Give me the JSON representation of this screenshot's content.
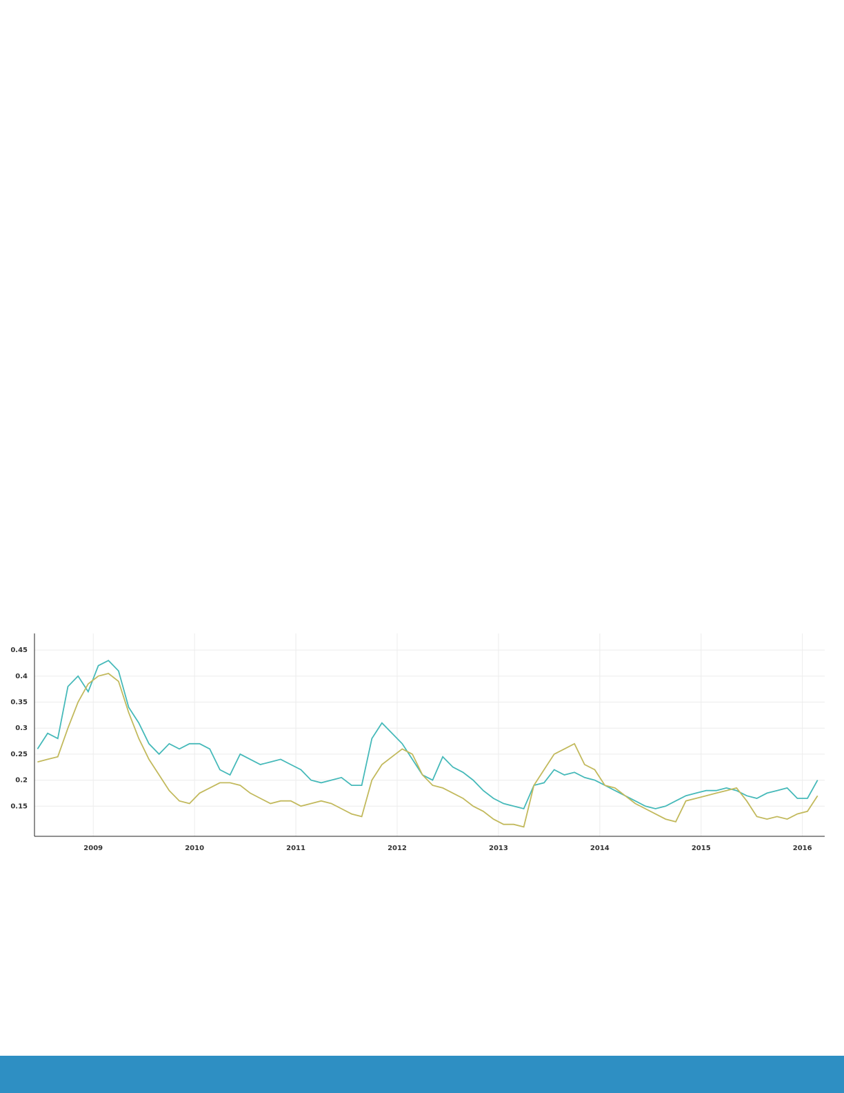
{
  "chart_data": {
    "type": "line",
    "x": [
      2008.45,
      2008.55,
      2008.65,
      2008.75,
      2008.85,
      2008.95,
      2009.05,
      2009.15,
      2009.25,
      2009.35,
      2009.45,
      2009.55,
      2009.65,
      2009.75,
      2009.85,
      2009.95,
      2010.05,
      2010.15,
      2010.25,
      2010.35,
      2010.45,
      2010.55,
      2010.65,
      2010.75,
      2010.85,
      2010.95,
      2011.05,
      2011.15,
      2011.25,
      2011.35,
      2011.45,
      2011.55,
      2011.65,
      2011.75,
      2011.85,
      2011.95,
      2012.05,
      2012.15,
      2012.25,
      2012.35,
      2012.45,
      2012.55,
      2012.65,
      2012.75,
      2012.85,
      2012.95,
      2013.05,
      2013.15,
      2013.25,
      2013.35,
      2013.45,
      2013.55,
      2013.65,
      2013.75,
      2013.85,
      2013.95,
      2014.05,
      2014.15,
      2014.25,
      2014.35,
      2014.45,
      2014.55,
      2014.65,
      2014.75,
      2014.85,
      2014.95,
      2015.05,
      2015.15,
      2015.25,
      2015.35,
      2015.45,
      2015.55,
      2015.65,
      2015.75,
      2015.85,
      2015.95,
      2016.05,
      2016.15
    ],
    "series": [
      {
        "color": "#45b9b9",
        "values": [
          0.26,
          0.29,
          0.28,
          0.38,
          0.4,
          0.37,
          0.42,
          0.43,
          0.41,
          0.34,
          0.31,
          0.27,
          0.25,
          0.27,
          0.26,
          0.27,
          0.27,
          0.26,
          0.22,
          0.21,
          0.25,
          0.24,
          0.23,
          0.235,
          0.24,
          0.23,
          0.22,
          0.2,
          0.195,
          0.2,
          0.205,
          0.19,
          0.19,
          0.28,
          0.31,
          0.29,
          0.27,
          0.24,
          0.21,
          0.2,
          0.245,
          0.225,
          0.215,
          0.2,
          0.18,
          0.165,
          0.155,
          0.15,
          0.145,
          0.19,
          0.195,
          0.22,
          0.21,
          0.215,
          0.205,
          0.2,
          0.19,
          0.18,
          0.17,
          0.16,
          0.15,
          0.145,
          0.15,
          0.16,
          0.17,
          0.175,
          0.18,
          0.18,
          0.185,
          0.18,
          0.17,
          0.165,
          0.175,
          0.18,
          0.185,
          0.165,
          0.165,
          0.2
        ]
      },
      {
        "color": "#c2b95c",
        "values": [
          0.235,
          0.24,
          0.245,
          0.3,
          0.35,
          0.385,
          0.4,
          0.405,
          0.39,
          0.33,
          0.28,
          0.24,
          0.21,
          0.18,
          0.16,
          0.155,
          0.175,
          0.185,
          0.195,
          0.195,
          0.19,
          0.175,
          0.165,
          0.155,
          0.16,
          0.16,
          0.15,
          0.155,
          0.16,
          0.155,
          0.145,
          0.135,
          0.13,
          0.2,
          0.23,
          0.245,
          0.26,
          0.25,
          0.21,
          0.19,
          0.185,
          0.175,
          0.165,
          0.15,
          0.14,
          0.125,
          0.115,
          0.115,
          0.11,
          0.19,
          0.22,
          0.25,
          0.26,
          0.27,
          0.23,
          0.22,
          0.19,
          0.185,
          0.17,
          0.155,
          0.145,
          0.135,
          0.125,
          0.12,
          0.16,
          0.165,
          0.17,
          0.175,
          0.18,
          0.185,
          0.16,
          0.13,
          0.125,
          0.13,
          0.125,
          0.135,
          0.14,
          0.17
        ]
      }
    ],
    "xlim": [
      2008.42,
      2016.22
    ],
    "xticks": [
      2009,
      2010,
      2011,
      2012,
      2013,
      2014,
      2015,
      2016
    ],
    "ylim": [
      0.092,
      0.482
    ],
    "yticks": [
      0.15,
      0.2,
      0.25,
      0.3,
      0.35,
      0.4,
      0.45
    ],
    "grid": true
  }
}
